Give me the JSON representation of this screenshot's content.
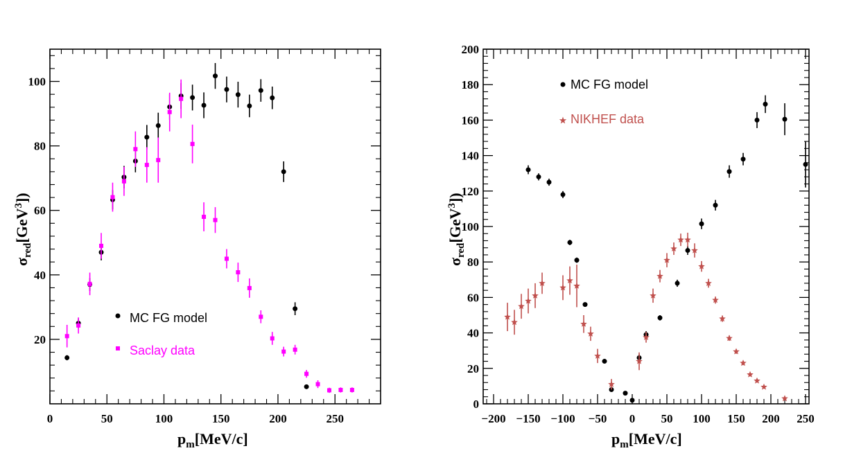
{
  "chart_data": [
    {
      "type": "scatter",
      "xlabel": "p",
      "xlabel_sub": "m",
      "xlabel_unit": "[MeV/c]",
      "ylabel": "σ",
      "ylabel_sub": "red",
      "ylabel_unit_pre": "[GeV",
      "ylabel_unit_sup": "3",
      "ylabel_unit_post": "])",
      "xlim": [
        0,
        290
      ],
      "ylim": [
        0,
        110
      ],
      "xticks": [
        0,
        50,
        100,
        150,
        200,
        250
      ],
      "yticks": [
        20,
        40,
        60,
        80,
        100
      ],
      "legend": {
        "placement": "center-left"
      },
      "series": [
        {
          "name": "MC FG model",
          "color": "#000000",
          "marker": "circle",
          "points": [
            [
              15,
              14.3,
              0.8
            ],
            [
              25,
              25.0,
              1.5
            ],
            [
              35,
              37.0,
              2.0
            ],
            [
              45,
              47.0,
              2.5
            ],
            [
              55,
              63.3,
              3.0
            ],
            [
              65,
              70.3,
              3.5
            ],
            [
              75,
              75.3,
              3.5
            ],
            [
              85,
              82.7,
              3.8
            ],
            [
              95,
              86.3,
              4.0
            ],
            [
              105,
              92.1,
              4.0
            ],
            [
              115,
              95.5,
              4.0
            ],
            [
              125,
              95.0,
              4.0
            ],
            [
              135,
              92.6,
              4.0
            ],
            [
              145,
              101.7,
              4.0
            ],
            [
              155,
              97.5,
              4.0
            ],
            [
              165,
              95.9,
              4.0
            ],
            [
              175,
              92.4,
              3.5
            ],
            [
              185,
              97.2,
              3.5
            ],
            [
              195,
              94.9,
              3.5
            ],
            [
              205,
              72.0,
              3.2
            ],
            [
              215,
              29.5,
              2.0
            ],
            [
              225,
              5.3,
              0.6
            ]
          ]
        },
        {
          "name": "Saclay data",
          "color": "#ff00ff",
          "marker": "square",
          "points": [
            [
              15,
              21.0,
              3.5
            ],
            [
              25,
              24.3,
              2.5
            ],
            [
              35,
              37.2,
              3.5
            ],
            [
              45,
              49.0,
              4.0
            ],
            [
              55,
              64.1,
              4.5
            ],
            [
              65,
              69.0,
              4.5
            ],
            [
              75,
              79.0,
              5.5
            ],
            [
              85,
              74.1,
              5.5
            ],
            [
              95,
              75.6,
              7.0
            ],
            [
              105,
              90.5,
              6.0
            ],
            [
              115,
              94.6,
              6.0
            ],
            [
              125,
              80.6,
              6.0
            ],
            [
              135,
              58.0,
              4.5
            ],
            [
              145,
              57.0,
              4.0
            ],
            [
              155,
              45.0,
              3.0
            ],
            [
              165,
              40.8,
              3.0
            ],
            [
              175,
              35.9,
              3.0
            ],
            [
              185,
              27.0,
              2.0
            ],
            [
              195,
              20.3,
              2.0
            ],
            [
              205,
              16.2,
              1.5
            ],
            [
              215,
              16.8,
              1.5
            ],
            [
              225,
              9.3,
              1.2
            ],
            [
              235,
              6.1,
              1.2
            ],
            [
              245,
              4.2,
              0.8
            ],
            [
              255,
              4.3,
              0.8
            ],
            [
              265,
              4.3,
              0.8
            ]
          ]
        }
      ]
    },
    {
      "type": "scatter",
      "xlabel": "p",
      "xlabel_sub": "m",
      "xlabel_unit": "[MeV/c]",
      "ylabel": "σ",
      "ylabel_sub": "red",
      "ylabel_unit_pre": "[GeV",
      "ylabel_unit_sup": "3",
      "ylabel_unit_post": "])",
      "xlim": [
        -215,
        255
      ],
      "ylim": [
        0,
        200
      ],
      "xticks": [
        -200,
        -150,
        -100,
        -50,
        0,
        50,
        100,
        150,
        200,
        250
      ],
      "xtick_labels": [
        "−200",
        "−150",
        "−100",
        "−50",
        "0",
        "50",
        "100",
        "150",
        "200",
        "250"
      ],
      "yticks": [
        0,
        20,
        40,
        60,
        80,
        100,
        120,
        140,
        160,
        180,
        200
      ],
      "legend": {
        "placement": "top-left"
      },
      "series": [
        {
          "name": "MC FG model",
          "color": "#000000",
          "marker": "circle",
          "points": [
            [
              -150,
              132,
              2.5
            ],
            [
              -135,
              128,
              2.0
            ],
            [
              -120,
              125,
              2.0
            ],
            [
              -100,
              118,
              2.0
            ],
            [
              -90,
              91,
              1.5
            ],
            [
              -80,
              81,
              1.5
            ],
            [
              -68,
              56,
              1.2
            ],
            [
              -40,
              24,
              1.0
            ],
            [
              -30,
              8,
              0.8
            ],
            [
              -10,
              6,
              0.6
            ],
            [
              0,
              2,
              0.5
            ],
            [
              10,
              26,
              2.0
            ],
            [
              20,
              39,
              2.0
            ],
            [
              40,
              48.5,
              1.5
            ],
            [
              65,
              68,
              2.0
            ],
            [
              80,
              86.5,
              2.5
            ],
            [
              100,
              101.5,
              3.0
            ],
            [
              120,
              112,
              3.0
            ],
            [
              140,
              131,
              3.5
            ],
            [
              160,
              138,
              3.5
            ],
            [
              180,
              160,
              4.5
            ],
            [
              192,
              169,
              5.0
            ],
            [
              220,
              160.5,
              9.0
            ],
            [
              250,
              135,
              13.0
            ]
          ]
        },
        {
          "name": "NIKHEF data",
          "color": "#c0504d",
          "marker": "star",
          "points": [
            [
              -180,
              49,
              8.0
            ],
            [
              -170,
              46,
              7.0
            ],
            [
              -160,
              55,
              7.0
            ],
            [
              -150,
              58,
              7.0
            ],
            [
              -140,
              61,
              7.0
            ],
            [
              -130,
              68,
              6.0
            ],
            [
              -100,
              65.5,
              7.0
            ],
            [
              -90,
              69.5,
              8.0
            ],
            [
              -80,
              66.5,
              12.0
            ],
            [
              -70,
              45,
              5.0
            ],
            [
              -60,
              39.5,
              4.0
            ],
            [
              -50,
              27,
              4.0
            ],
            [
              -30,
              11,
              3.0
            ],
            [
              10,
              24,
              5.0
            ],
            [
              20,
              37.5,
              3.0
            ],
            [
              30,
              61,
              4.0
            ],
            [
              40,
              72,
              3.5
            ],
            [
              50,
              81,
              4.0
            ],
            [
              60,
              87.5,
              3.5
            ],
            [
              70,
              92.5,
              3.5
            ],
            [
              80,
              92.5,
              4.0
            ],
            [
              90,
              86.5,
              4.0
            ],
            [
              100,
              77.5,
              3.0
            ],
            [
              110,
              68,
              2.5
            ],
            [
              120,
              58.5,
              2.0
            ],
            [
              130,
              48,
              1.8
            ],
            [
              140,
              37,
              1.5
            ],
            [
              150,
              29.5,
              1.3
            ],
            [
              160,
              23,
              1.2
            ],
            [
              170,
              16.5,
              1.0
            ],
            [
              180,
              13,
              1.0
            ],
            [
              190,
              9.5,
              0.8
            ],
            [
              220,
              3,
              0.6
            ]
          ]
        }
      ]
    }
  ]
}
